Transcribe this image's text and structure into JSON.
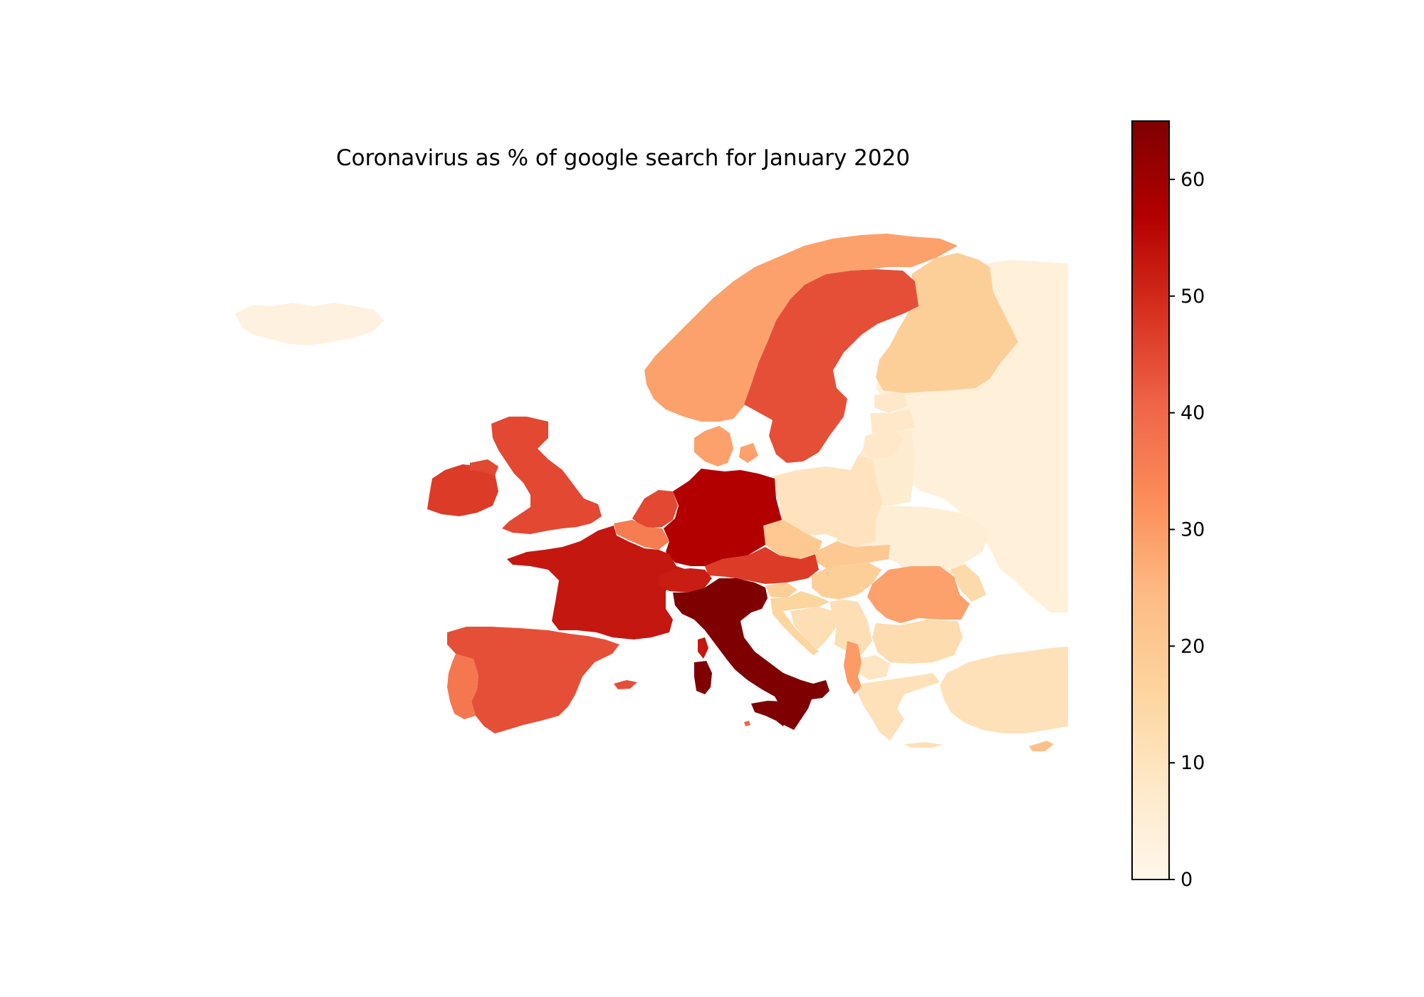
{
  "chart_data": {
    "type": "choropleth",
    "title": "Coronavirus as % of google search for January 2020",
    "colormap": "OrRd",
    "colorbar": {
      "min": 0,
      "max": 65,
      "ticks": [
        0,
        10,
        20,
        30,
        40,
        50,
        60
      ],
      "tick_labels": [
        "0",
        "10",
        "20",
        "30",
        "40",
        "50",
        "60"
      ],
      "placement": "right"
    },
    "regions": [
      {
        "name": "Iceland",
        "value": 3
      },
      {
        "name": "Norway",
        "value": 29
      },
      {
        "name": "Sweden",
        "value": 44
      },
      {
        "name": "Finland",
        "value": 18
      },
      {
        "name": "Russia",
        "value": 4
      },
      {
        "name": "Denmark",
        "value": 29
      },
      {
        "name": "Ireland",
        "value": 47
      },
      {
        "name": "United Kingdom",
        "value": 45
      },
      {
        "name": "Netherlands",
        "value": 45
      },
      {
        "name": "Belgium",
        "value": 36
      },
      {
        "name": "Germany",
        "value": 57
      },
      {
        "name": "France",
        "value": 53
      },
      {
        "name": "Switzerland",
        "value": 52
      },
      {
        "name": "Austria",
        "value": 47
      },
      {
        "name": "Italy",
        "value": 65
      },
      {
        "name": "Spain",
        "value": 44
      },
      {
        "name": "Portugal",
        "value": 37
      },
      {
        "name": "Poland",
        "value": 10
      },
      {
        "name": "Czechia",
        "value": 20
      },
      {
        "name": "Slovakia",
        "value": 20
      },
      {
        "name": "Hungary",
        "value": 18
      },
      {
        "name": "Romania",
        "value": 29
      },
      {
        "name": "Bulgaria",
        "value": 13
      },
      {
        "name": "Greece",
        "value": 11
      },
      {
        "name": "Turkey",
        "value": 11
      },
      {
        "name": "Albania",
        "value": 30
      },
      {
        "name": "Belarus",
        "value": 6
      },
      {
        "name": "Ukraine",
        "value": 5
      },
      {
        "name": "Estonia",
        "value": 8
      },
      {
        "name": "Latvia",
        "value": 8
      },
      {
        "name": "Lithuania",
        "value": 8
      },
      {
        "name": "Croatia",
        "value": 16
      },
      {
        "name": "Serbia",
        "value": 12
      },
      {
        "name": "Cyprus",
        "value": 22
      },
      {
        "name": "Malta",
        "value": 40
      },
      {
        "name": "Bosnia and Herzegovina",
        "value": 12
      },
      {
        "name": "Slovenia",
        "value": 18
      },
      {
        "name": "Moldova",
        "value": 14
      },
      {
        "name": "Macedonia",
        "value": 9
      }
    ]
  }
}
